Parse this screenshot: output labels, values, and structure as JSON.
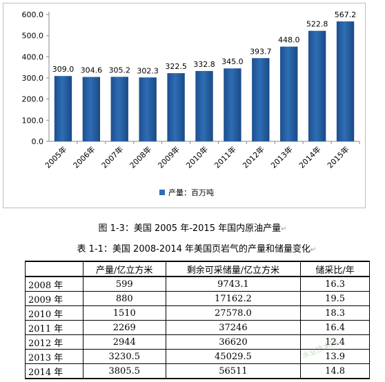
{
  "figure_caption": "图 1-3：美国 2005 年-2015 年国内原油产量",
  "table_caption": "表 1-1：美国 2008-2014 年美国页岩气的产量和储量变化",
  "chart_data": {
    "type": "bar",
    "categories": [
      "2005年",
      "2006年",
      "2007年",
      "2008年",
      "2009年",
      "2010年",
      "2011年",
      "2012年",
      "2013年",
      "2014年",
      "2015年"
    ],
    "series": [
      {
        "name": "产量：百万吨",
        "values": [
          309.0,
          304.6,
          305.2,
          302.3,
          322.5,
          332.8,
          345.0,
          393.7,
          448.0,
          522.8,
          567.2
        ]
      }
    ],
    "value_labels": [
      "309.0",
      "304.6",
      "305.2",
      "302.3",
      "322.5",
      "332.8",
      "345.0",
      "393.7",
      "448.0",
      "522.8",
      "567.2"
    ],
    "ylim": [
      0,
      600
    ],
    "yticks": [
      "0.0",
      "100.0",
      "200.0",
      "300.0",
      "400.0",
      "500.0",
      "600.0"
    ],
    "legend_position": "bottom",
    "bar_color": "#2e6db4",
    "grid": false
  },
  "table": {
    "headers": [
      "",
      "产量/亿立方米",
      "剩余可采储量/亿立方米",
      "储采比/年"
    ],
    "rows": [
      [
        "2008 年",
        "599",
        "9743.1",
        "16.3"
      ],
      [
        "2009 年",
        "880",
        "17162.2",
        "19.5"
      ],
      [
        "2010 年",
        "1510",
        "27578.0",
        "18.3"
      ],
      [
        "2011 年",
        "2269",
        "37246",
        "16.4"
      ],
      [
        "2012 年",
        "2944",
        "36620",
        "12.4"
      ],
      [
        "2013 年",
        "3230.5",
        "45029.5",
        "13.9"
      ],
      [
        "2014 年",
        "3805.5",
        "56511",
        "14.8"
      ]
    ]
  },
  "watermark": "水业技术网"
}
